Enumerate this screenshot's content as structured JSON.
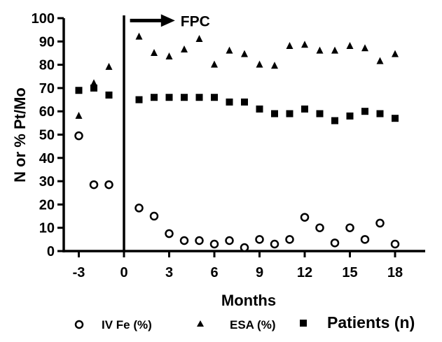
{
  "chart_data": {
    "type": "scatter",
    "xlabel": "Months",
    "ylabel": "N or % Pt/Mo",
    "xlim": [
      -4,
      20
    ],
    "ylim": [
      0,
      100
    ],
    "x_ticks": [
      -3,
      0,
      3,
      6,
      9,
      12,
      15,
      18
    ],
    "y_ticks": [
      0,
      10,
      20,
      30,
      40,
      50,
      60,
      70,
      80,
      90,
      100
    ],
    "annotation": {
      "text": "FPC",
      "arrow_from_x": 0.4,
      "arrow_to_x": 3.2,
      "y": 99
    },
    "vertical_reference_line_x": 0,
    "legend_position": "bottom",
    "series": [
      {
        "name": "IV Fe (%)",
        "marker": "open-circle",
        "x": [
          -3,
          -2,
          -1,
          1,
          2,
          3,
          4,
          5,
          6,
          7,
          8,
          9,
          10,
          11,
          12,
          13,
          14,
          15,
          16,
          17,
          18
        ],
        "y": [
          49.5,
          28.5,
          28.5,
          18.5,
          15,
          7.5,
          4.5,
          4.5,
          3,
          4.5,
          1.5,
          5,
          3,
          5,
          14.5,
          10,
          3.5,
          10,
          5,
          12,
          3
        ]
      },
      {
        "name": "ESA (%)",
        "marker": "triangle",
        "x": [
          -3,
          -2,
          -1,
          1,
          2,
          3,
          4,
          5,
          6,
          7,
          8,
          9,
          10,
          11,
          12,
          13,
          14,
          15,
          16,
          17,
          18
        ],
        "y": [
          58,
          72,
          79,
          92,
          85,
          83.5,
          86.5,
          91,
          80,
          86,
          84.5,
          80,
          79.5,
          88,
          88.5,
          86,
          86,
          88,
          87,
          81.5,
          84.5
        ]
      },
      {
        "name": "Patients (n)",
        "marker": "square",
        "x": [
          -3,
          -2,
          -1,
          1,
          2,
          3,
          4,
          5,
          6,
          7,
          8,
          9,
          10,
          11,
          12,
          13,
          14,
          15,
          16,
          17,
          18
        ],
        "y": [
          69,
          70,
          67,
          65,
          66,
          66,
          66,
          66,
          66,
          64,
          64,
          61,
          59,
          59,
          61,
          59,
          56,
          58,
          60,
          59,
          57
        ]
      }
    ]
  }
}
